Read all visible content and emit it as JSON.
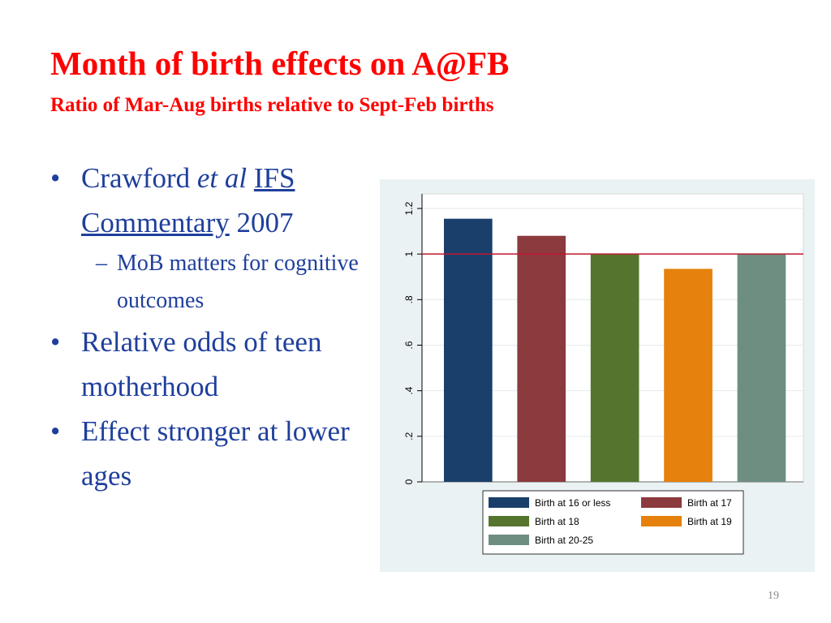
{
  "slide": {
    "title": "Month of birth effects on A@FB",
    "subtitle": "Ratio of Mar-Aug births relative to Sept-Feb births",
    "page_number": "19"
  },
  "bullets": {
    "b1": {
      "bullet": "•",
      "text_a": "Crawford ",
      "text_b": "et al",
      "text_c": " ",
      "link1": "IFS",
      "link2": "Commentary",
      "text_d": " 2007"
    },
    "b1_sub": {
      "dash": "–",
      "text": "MoB matters for cognitive outcomes"
    },
    "b2": {
      "bullet": "•",
      "text": "Relative odds of teen motherhood"
    },
    "b3": {
      "bullet": "•",
      "text": "Effect stronger at lower ages"
    }
  },
  "chart_data": {
    "type": "bar",
    "title": "",
    "xlabel": "",
    "ylabel": "",
    "ylim": [
      0,
      1.2
    ],
    "yticks": [
      0,
      0.2,
      0.4,
      0.6,
      0.8,
      1,
      1.2
    ],
    "ytick_labels": [
      "0",
      ".2",
      ".4",
      ".6",
      ".8",
      "1",
      "1.2"
    ],
    "reference_line": {
      "y": 1,
      "color": "#c0182e"
    },
    "grid": true,
    "legend_position": "bottom",
    "categories": [
      "Birth at 16 or less",
      "Birth at 17",
      "Birth at 18",
      "Birth at 19",
      "Birth at 20-25"
    ],
    "values": [
      1.155,
      1.08,
      1.0,
      0.935,
      1.0
    ],
    "colors": [
      "#1b3f6b",
      "#8b3a3e",
      "#55752e",
      "#e5810c",
      "#6e8e82"
    ]
  }
}
